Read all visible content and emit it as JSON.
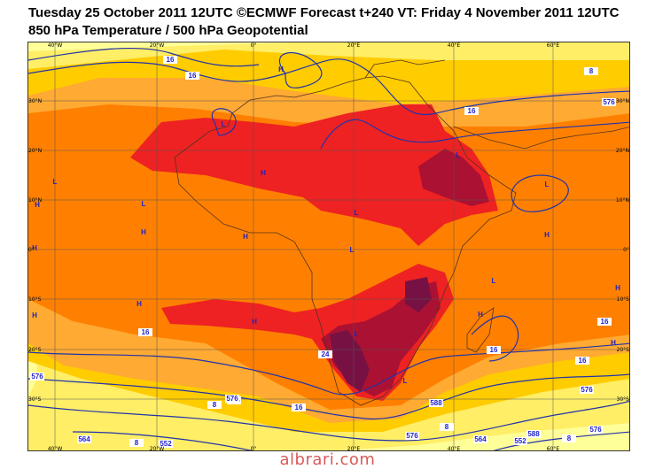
{
  "header": {
    "title_line1": "Tuesday 25 October 2011 12UTC ©ECMWF Forecast t+240 VT: Friday 4 November 2011 12UTC",
    "title_line2": "850 hPa Temperature / 500 hPa Geopotential"
  },
  "axes": {
    "top_lon_labels": [
      "40°W",
      "20°W",
      "0°",
      "20°E",
      "40°E",
      "60°E"
    ],
    "bottom_lon_labels": [
      "40°W",
      "20°W",
      "0°",
      "20°E",
      "40°E",
      "60°E"
    ],
    "left_lat_labels": [
      "30°N",
      "20°N",
      "10°N",
      "0°",
      "10°S",
      "20°S",
      "30°S"
    ],
    "right_lat_labels": [
      "30°N",
      "20°N",
      "10°N",
      "0°",
      "10°S",
      "20°S",
      "30°S"
    ]
  },
  "pressure_centers": [
    "H",
    "L",
    "H",
    "L",
    "L",
    "H",
    "H",
    "H",
    "L",
    "H",
    "L",
    "L",
    "H",
    "L",
    "H",
    "H",
    "H",
    "L",
    "L",
    "H",
    "H",
    "L",
    "H"
  ],
  "contour_labels": [
    "16",
    "16",
    "8",
    "16",
    "576",
    "16",
    "16",
    "16",
    "24",
    "16",
    "8",
    "16",
    "576",
    "576",
    "576",
    "564",
    "552",
    "8",
    "576",
    "8",
    "564",
    "552",
    "588",
    "8",
    "576",
    "576",
    "588"
  ],
  "colors": {
    "temp_ocean_cool": "#ffff99",
    "temp_light": "#ffee66",
    "temp_yellow": "#ffcc00",
    "temp_orange_light": "#ffaa33",
    "temp_orange": "#ff8000",
    "temp_red": "#ee2222",
    "temp_darkred": "#aa1133",
    "temp_maroon": "#771144",
    "contour_blue": "#2233aa",
    "coast_brown": "#553322",
    "pressure_label_blue": "#2222bb"
  },
  "watermark": "albrari.com"
}
